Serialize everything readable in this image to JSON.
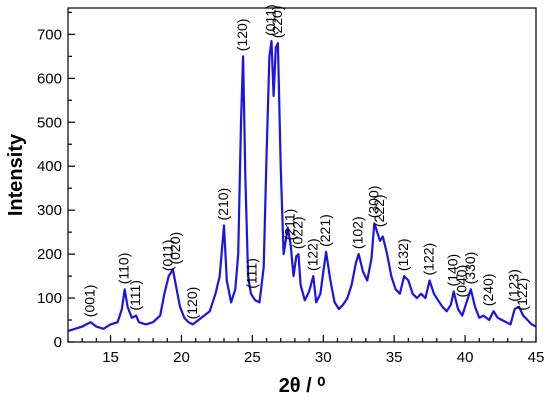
{
  "chart_data": {
    "type": "line",
    "xlabel": "2θ / ⁰",
    "ylabel": "Intensity",
    "xlim": [
      12,
      45
    ],
    "ylim": [
      0,
      760
    ],
    "x_ticks": [
      15,
      20,
      25,
      30,
      35,
      40,
      45
    ],
    "y_ticks": [
      0,
      100,
      200,
      300,
      400,
      500,
      600,
      700
    ],
    "grid": false,
    "series": [
      {
        "color": "#1a14e6",
        "x": [
          12.0,
          12.5,
          13.0,
          13.3,
          13.6,
          14.0,
          14.5,
          15.0,
          15.5,
          15.8,
          16.0,
          16.2,
          16.5,
          16.8,
          17.0,
          17.5,
          18.0,
          18.5,
          18.8,
          19.1,
          19.4,
          19.6,
          19.9,
          20.2,
          20.5,
          20.8,
          21.2,
          21.6,
          22.0,
          22.4,
          22.7,
          23.0,
          23.2,
          23.5,
          23.8,
          24.0,
          24.2,
          24.35,
          24.5,
          24.7,
          24.9,
          25.2,
          25.5,
          25.8,
          26.0,
          26.2,
          26.35,
          26.5,
          26.65,
          26.8,
          27.0,
          27.2,
          27.5,
          27.7,
          27.9,
          28.1,
          28.25,
          28.4,
          28.7,
          29.0,
          29.3,
          29.5,
          29.8,
          30.0,
          30.2,
          30.5,
          30.8,
          31.1,
          31.4,
          31.7,
          32.0,
          32.3,
          32.5,
          32.8,
          33.1,
          33.4,
          33.6,
          33.8,
          34.0,
          34.2,
          34.5,
          34.8,
          35.1,
          35.4,
          35.7,
          36.0,
          36.3,
          36.6,
          36.9,
          37.2,
          37.5,
          37.8,
          38.1,
          38.4,
          38.7,
          39.0,
          39.2,
          39.5,
          39.8,
          40.1,
          40.4,
          40.7,
          41.0,
          41.3,
          41.7,
          42.0,
          42.3,
          42.6,
          42.9,
          43.2,
          43.5,
          43.8,
          44.1,
          44.4,
          44.7,
          45.0
        ],
        "values": [
          25,
          30,
          35,
          40,
          45,
          35,
          30,
          40,
          45,
          75,
          120,
          80,
          55,
          60,
          45,
          40,
          45,
          60,
          110,
          150,
          165,
          130,
          80,
          55,
          45,
          40,
          50,
          60,
          70,
          110,
          150,
          265,
          140,
          90,
          120,
          200,
          500,
          650,
          380,
          150,
          110,
          95,
          90,
          170,
          420,
          650,
          685,
          560,
          670,
          680,
          400,
          200,
          260,
          220,
          150,
          195,
          200,
          130,
          95,
          115,
          150,
          90,
          110,
          160,
          205,
          140,
          90,
          75,
          85,
          100,
          130,
          180,
          200,
          160,
          140,
          190,
          270,
          250,
          230,
          240,
          200,
          150,
          120,
          110,
          150,
          140,
          110,
          100,
          110,
          100,
          140,
          110,
          95,
          80,
          70,
          85,
          115,
          75,
          60,
          90,
          120,
          80,
          55,
          60,
          50,
          70,
          55,
          50,
          45,
          40,
          75,
          80,
          60,
          50,
          40,
          35
        ]
      }
    ],
    "annotations": [
      {
        "text": "(001)",
        "x": 13.6,
        "y": 45
      },
      {
        "text": "(110)",
        "x": 16.0,
        "y": 120
      },
      {
        "text": "(111)",
        "x": 16.8,
        "y": 60
      },
      {
        "text": "(011)",
        "x": 19.1,
        "y": 150
      },
      {
        "text": "(020)",
        "x": 19.6,
        "y": 165
      },
      {
        "text": "(120)",
        "x": 20.8,
        "y": 40
      },
      {
        "text": "(210)",
        "x": 23.0,
        "y": 265
      },
      {
        "text": "(120)",
        "x": 24.35,
        "y": 650
      },
      {
        "text": "(111)",
        "x": 25.0,
        "y": 110
      },
      {
        "text": "(011)",
        "x": 26.35,
        "y": 685
      },
      {
        "text": "(220)",
        "x": 26.8,
        "y": 680
      },
      {
        "text": "(211)",
        "x": 27.7,
        "y": 220
      },
      {
        "text": "(022)",
        "x": 28.25,
        "y": 200
      },
      {
        "text": "(122)",
        "x": 29.3,
        "y": 150
      },
      {
        "text": "(221)",
        "x": 30.2,
        "y": 205
      },
      {
        "text": "(102)",
        "x": 32.5,
        "y": 200
      },
      {
        "text": "(300)",
        "x": 33.6,
        "y": 270
      },
      {
        "text": "(222)",
        "x": 34.0,
        "y": 250
      },
      {
        "text": "(132)",
        "x": 35.7,
        "y": 150
      },
      {
        "text": "(122)",
        "x": 37.5,
        "y": 140
      },
      {
        "text": "(140)",
        "x": 39.2,
        "y": 115
      },
      {
        "text": "(040)",
        "x": 39.8,
        "y": 90
      },
      {
        "text": "(330)",
        "x": 40.4,
        "y": 120
      },
      {
        "text": "(240)",
        "x": 41.7,
        "y": 70
      },
      {
        "text": "(123)",
        "x": 43.5,
        "y": 80
      },
      {
        "text": "(122)",
        "x": 44.1,
        "y": 60
      }
    ]
  }
}
